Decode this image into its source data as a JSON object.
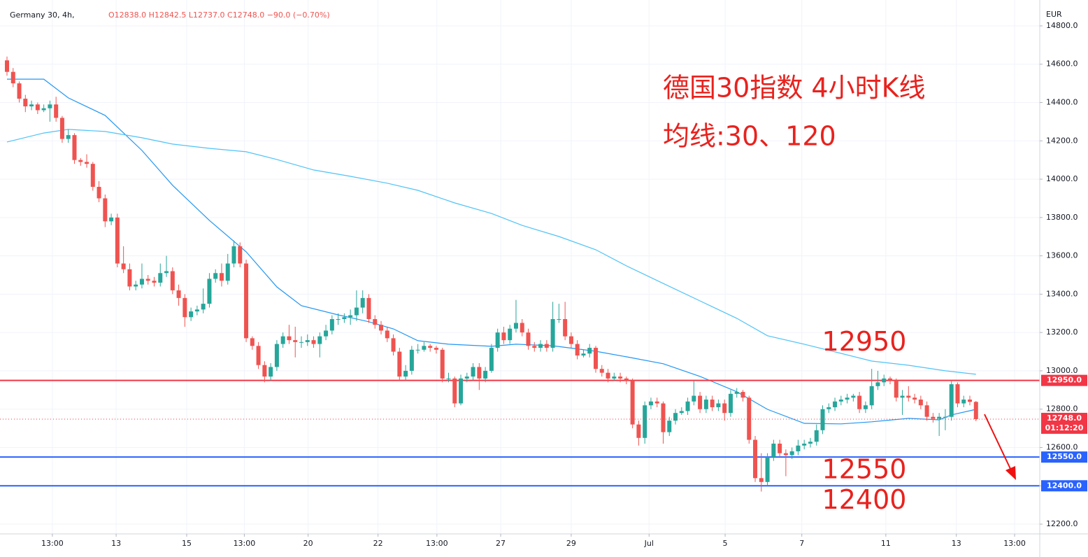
{
  "header": {
    "symbol": "Germany 30, 4h,",
    "open": "O12838.0",
    "high": "H12842.5",
    "low": "L12737.0",
    "close": "C12748.0",
    "change": "−90.0 (−0.70%)"
  },
  "chart_data": {
    "type": "candlestick",
    "title": "德国30指数 4小时K线",
    "subtitle": "均线:30、120",
    "axis_label": "EUR",
    "up_color": "#26a69a",
    "down_color": "#ef5350",
    "ylim": [
      12149,
      14935
    ],
    "yticks": [
      {
        "value": 12200,
        "label": "12200.0"
      },
      {
        "value": 12400,
        "label": "12400.0"
      },
      {
        "value": 12600,
        "label": "12600.0"
      },
      {
        "value": 12800,
        "label": "12800.0"
      },
      {
        "value": 13000,
        "label": "13000.0"
      },
      {
        "value": 13200,
        "label": "13200.0"
      },
      {
        "value": 13400,
        "label": "13400.0"
      },
      {
        "value": 13600,
        "label": "13600.0"
      },
      {
        "value": 13800,
        "label": "13800.0"
      },
      {
        "value": 14000,
        "label": "14000.0"
      },
      {
        "value": 14200,
        "label": "14200.0"
      },
      {
        "value": 14400,
        "label": "14400.0"
      },
      {
        "value": 14600,
        "label": "14600.0"
      },
      {
        "value": 14800,
        "label": "14800.0"
      }
    ],
    "xlim": [
      -1.14,
      168.4
    ],
    "xticks": [
      {
        "value": 7.4,
        "label": "13:00"
      },
      {
        "value": 17.8,
        "label": "13"
      },
      {
        "value": 29.3,
        "label": "15"
      },
      {
        "value": 38.7,
        "label": "13:00"
      },
      {
        "value": 49.1,
        "label": "20"
      },
      {
        "value": 60.5,
        "label": "22"
      },
      {
        "value": 70.1,
        "label": "13:00"
      },
      {
        "value": 80.5,
        "label": "27"
      },
      {
        "value": 92.0,
        "label": "29"
      },
      {
        "value": 104.7,
        "label": "Jul"
      },
      {
        "value": 117.1,
        "label": "5"
      },
      {
        "value": 129.6,
        "label": "7"
      },
      {
        "value": 143.3,
        "label": "11"
      },
      {
        "value": 154.8,
        "label": "13"
      },
      {
        "value": 164.3,
        "label": "13:00"
      }
    ],
    "grid": true,
    "ohlc": [
      [
        14620,
        14640,
        14540,
        14560
      ],
      [
        14560,
        14580,
        14480,
        14500
      ],
      [
        14500,
        14510,
        14400,
        14420
      ],
      [
        14420,
        14440,
        14350,
        14380
      ],
      [
        14380,
        14410,
        14360,
        14390
      ],
      [
        14390,
        14400,
        14340,
        14360
      ],
      [
        14360,
        14390,
        14350,
        14370
      ],
      [
        14370,
        14410,
        14300,
        14390
      ],
      [
        14390,
        14430,
        14300,
        14320
      ],
      [
        14320,
        14330,
        14190,
        14210
      ],
      [
        14210,
        14260,
        14190,
        14230
      ],
      [
        14230,
        14240,
        14080,
        14100
      ],
      [
        14100,
        14110,
        14070,
        14090
      ],
      [
        14090,
        14130,
        14060,
        14080
      ],
      [
        14080,
        14090,
        13940,
        13960
      ],
      [
        13960,
        13990,
        13880,
        13900
      ],
      [
        13900,
        13920,
        13750,
        13780
      ],
      [
        13780,
        13820,
        13760,
        13800
      ],
      [
        13800,
        13820,
        13540,
        13560
      ],
      [
        13560,
        13650,
        13510,
        13530
      ],
      [
        13530,
        13560,
        13420,
        13440
      ],
      [
        13440,
        13470,
        13420,
        13450
      ],
      [
        13450,
        13560,
        13430,
        13480
      ],
      [
        13480,
        13500,
        13450,
        13470
      ],
      [
        13470,
        13490,
        13440,
        13460
      ],
      [
        13460,
        13560,
        13440,
        13510
      ],
      [
        13510,
        13600,
        13490,
        13520
      ],
      [
        13520,
        13540,
        13400,
        13420
      ],
      [
        13420,
        13450,
        13340,
        13380
      ],
      [
        13380,
        13400,
        13230,
        13280
      ],
      [
        13280,
        13330,
        13260,
        13310
      ],
      [
        13310,
        13340,
        13290,
        13320
      ],
      [
        13320,
        13430,
        13300,
        13350
      ],
      [
        13350,
        13510,
        13330,
        13480
      ],
      [
        13480,
        13530,
        13460,
        13510
      ],
      [
        13510,
        13560,
        13440,
        13470
      ],
      [
        13470,
        13610,
        13450,
        13560
      ],
      [
        13560,
        13680,
        13540,
        13650
      ],
      [
        13650,
        13670,
        13540,
        13560
      ],
      [
        13560,
        13580,
        13150,
        13170
      ],
      [
        13170,
        13180,
        13110,
        13130
      ],
      [
        13130,
        13150,
        13010,
        13030
      ],
      [
        13030,
        13050,
        12940,
        12970
      ],
      [
        12970,
        13040,
        12950,
        13020
      ],
      [
        13020,
        13160,
        13000,
        13140
      ],
      [
        13140,
        13200,
        13120,
        13180
      ],
      [
        13180,
        13240,
        13140,
        13160
      ],
      [
        13160,
        13230,
        13070,
        13150
      ],
      [
        13150,
        13180,
        13120,
        13150
      ],
      [
        13150,
        13190,
        13130,
        13160
      ],
      [
        13160,
        13180,
        13120,
        13140
      ],
      [
        13140,
        13200,
        13070,
        13180
      ],
      [
        13180,
        13240,
        13160,
        13210
      ],
      [
        13210,
        13290,
        13190,
        13270
      ],
      [
        13270,
        13300,
        13240,
        13270
      ],
      [
        13270,
        13300,
        13250,
        13280
      ],
      [
        13280,
        13320,
        13240,
        13290
      ],
      [
        13290,
        13420,
        13260,
        13330
      ],
      [
        13330,
        13420,
        13300,
        13380
      ],
      [
        13380,
        13400,
        13250,
        13270
      ],
      [
        13270,
        13290,
        13220,
        13240
      ],
      [
        13240,
        13260,
        13190,
        13210
      ],
      [
        13210,
        13230,
        13150,
        13170
      ],
      [
        13170,
        13190,
        13080,
        13100
      ],
      [
        13100,
        13120,
        12950,
        12970
      ],
      [
        12970,
        13030,
        12950,
        13000
      ],
      [
        13000,
        13130,
        12980,
        13110
      ],
      [
        13110,
        13140,
        13090,
        13110
      ],
      [
        13110,
        13150,
        13100,
        13130
      ],
      [
        13130,
        13140,
        13100,
        13120
      ],
      [
        13120,
        13130,
        13090,
        13110
      ],
      [
        13110,
        13120,
        12940,
        12960
      ],
      [
        12960,
        12990,
        12940,
        12960
      ],
      [
        12960,
        12970,
        12810,
        12830
      ],
      [
        12830,
        12980,
        12820,
        12960
      ],
      [
        12960,
        12990,
        12940,
        12970
      ],
      [
        12970,
        13040,
        12950,
        13020
      ],
      [
        13020,
        13040,
        12900,
        12960
      ],
      [
        12960,
        13020,
        12940,
        13000
      ],
      [
        13000,
        13140,
        12990,
        13120
      ],
      [
        13120,
        13220,
        13100,
        13200
      ],
      [
        13200,
        13230,
        13140,
        13160
      ],
      [
        13160,
        13240,
        13140,
        13220
      ],
      [
        13220,
        13370,
        13200,
        13250
      ],
      [
        13250,
        13270,
        13180,
        13200
      ],
      [
        13200,
        13220,
        13110,
        13130
      ],
      [
        13130,
        13150,
        13100,
        13120
      ],
      [
        13120,
        13160,
        13100,
        13140
      ],
      [
        13140,
        13160,
        13100,
        13120
      ],
      [
        13120,
        13360,
        13100,
        13270
      ],
      [
        13270,
        13350,
        13250,
        13270
      ],
      [
        13270,
        13360,
        13160,
        13180
      ],
      [
        13180,
        13200,
        13120,
        13140
      ],
      [
        13140,
        13160,
        13060,
        13080
      ],
      [
        13080,
        13110,
        13070,
        13090
      ],
      [
        13090,
        13140,
        13070,
        13120
      ],
      [
        13120,
        13130,
        12990,
        13010
      ],
      [
        13010,
        13030,
        12970,
        12990
      ],
      [
        12990,
        13010,
        12940,
        12960
      ],
      [
        12960,
        12990,
        12950,
        12970
      ],
      [
        12970,
        12990,
        12940,
        12960
      ],
      [
        12960,
        12970,
        12930,
        12950
      ],
      [
        12950,
        12960,
        12700,
        12720
      ],
      [
        12720,
        12740,
        12610,
        12650
      ],
      [
        12650,
        12840,
        12620,
        12820
      ],
      [
        12820,
        12860,
        12800,
        12840
      ],
      [
        12840,
        12860,
        12810,
        12830
      ],
      [
        12830,
        12840,
        12620,
        12680
      ],
      [
        12680,
        12760,
        12660,
        12740
      ],
      [
        12740,
        12800,
        12720,
        12780
      ],
      [
        12780,
        12810,
        12770,
        12790
      ],
      [
        12790,
        12860,
        12770,
        12840
      ],
      [
        12840,
        12950,
        12820,
        12870
      ],
      [
        12870,
        12890,
        12780,
        12800
      ],
      [
        12800,
        12870,
        12780,
        12850
      ],
      [
        12850,
        12870,
        12790,
        12810
      ],
      [
        12810,
        12850,
        12790,
        12830
      ],
      [
        12830,
        12850,
        12740,
        12780
      ],
      [
        12780,
        12900,
        12760,
        12880
      ],
      [
        12880,
        12910,
        12860,
        12890
      ],
      [
        12890,
        12900,
        12840,
        12860
      ],
      [
        12860,
        12870,
        12620,
        12640
      ],
      [
        12640,
        12660,
        12420,
        12440
      ],
      [
        12440,
        12570,
        12370,
        12420
      ],
      [
        12420,
        12570,
        12400,
        12550
      ],
      [
        12550,
        12640,
        12530,
        12620
      ],
      [
        12620,
        12640,
        12550,
        12570
      ],
      [
        12570,
        12590,
        12450,
        12560
      ],
      [
        12560,
        12600,
        12540,
        12580
      ],
      [
        12580,
        12640,
        12560,
        12610
      ],
      [
        12610,
        12640,
        12590,
        12620
      ],
      [
        12620,
        12650,
        12600,
        12630
      ],
      [
        12630,
        12720,
        12610,
        12690
      ],
      [
        12690,
        12820,
        12670,
        12800
      ],
      [
        12800,
        12830,
        12780,
        12810
      ],
      [
        12810,
        12860,
        12790,
        12840
      ],
      [
        12840,
        12870,
        12820,
        12850
      ],
      [
        12850,
        12880,
        12830,
        12860
      ],
      [
        12860,
        12880,
        12840,
        12870
      ],
      [
        12870,
        12890,
        12780,
        12800
      ],
      [
        12800,
        12840,
        12780,
        12820
      ],
      [
        12820,
        13010,
        12800,
        12920
      ],
      [
        12920,
        13000,
        12900,
        12940
      ],
      [
        12940,
        12980,
        12920,
        12960
      ],
      [
        12960,
        12970,
        12930,
        12950
      ],
      [
        12950,
        12960,
        12840,
        12860
      ],
      [
        12860,
        12900,
        12770,
        12870
      ],
      [
        12870,
        12920,
        12840,
        12860
      ],
      [
        12860,
        12880,
        12830,
        12850
      ],
      [
        12850,
        12870,
        12800,
        12820
      ],
      [
        12820,
        12840,
        12740,
        12760
      ],
      [
        12760,
        12780,
        12730,
        12750
      ],
      [
        12750,
        12780,
        12660,
        12760
      ],
      [
        12760,
        12800,
        12690,
        12760
      ],
      [
        12760,
        12950,
        12740,
        12930
      ],
      [
        12930,
        12940,
        12810,
        12830
      ],
      [
        12830,
        12870,
        12810,
        12850
      ],
      [
        12850,
        12870,
        12820,
        12838
      ],
      [
        12838,
        12842.5,
        12737,
        12748
      ]
    ],
    "series": [
      {
        "color": "#2196f3",
        "x": [
          0,
          6,
          10,
          16,
          22,
          27,
          33,
          39,
          44,
          48,
          54,
          59,
          63,
          67,
          72,
          79,
          83,
          89,
          96,
          101,
          107,
          113,
          119,
          124,
          130,
          136,
          141,
          147,
          152,
          154,
          158
        ],
        "values": [
          14522,
          14522,
          14424,
          14333,
          14150,
          13968,
          13785,
          13621,
          13438,
          13340,
          13292,
          13256,
          13219,
          13157,
          13139,
          13128,
          13139,
          13131,
          13102,
          13073,
          13037,
          12971,
          12891,
          12799,
          12726,
          12723,
          12734,
          12752,
          12744,
          12770,
          12799
        ]
      },
      {
        "color": "#4fc3f7",
        "x": [
          0,
          6,
          10,
          16,
          22,
          27,
          33,
          39,
          44,
          50,
          56,
          62,
          67,
          73,
          79,
          84,
          90,
          96,
          101,
          107,
          113,
          119,
          124,
          130,
          136,
          141,
          147,
          153,
          158
        ],
        "values": [
          14194,
          14241,
          14260,
          14249,
          14216,
          14183,
          14161,
          14143,
          14103,
          14048,
          14015,
          13979,
          13942,
          13876,
          13821,
          13759,
          13701,
          13632,
          13548,
          13456,
          13365,
          13274,
          13183,
          13139,
          13091,
          13051,
          13029,
          13000,
          12982
        ]
      }
    ],
    "hlines": [
      {
        "value": 12950,
        "label": "12950.0",
        "annotation": "12950",
        "color": "#f23645"
      },
      {
        "value": 12550,
        "label": "12550.0",
        "annotation": "12550",
        "color": "#2962ff"
      },
      {
        "value": 12400,
        "label": "12400.0",
        "annotation": "12400",
        "color": "#2962ff"
      }
    ],
    "last_price": {
      "value": 12748,
      "label": "12748.0",
      "countdown": "01:12:20",
      "color": "#f23645"
    }
  }
}
